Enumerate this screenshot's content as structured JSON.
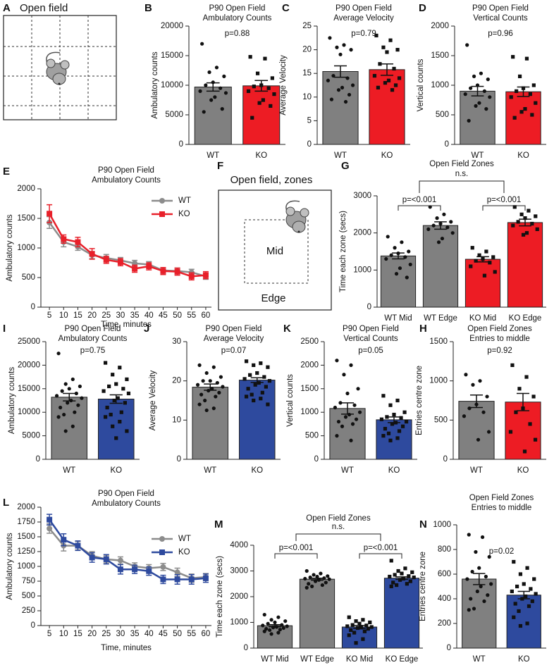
{
  "diagrams": [
    {
      "panel": "A",
      "title": "Open field"
    },
    {
      "panel": "F",
      "title": "Open field, zones",
      "labels": [
        "Mid",
        "Edge"
      ]
    }
  ],
  "chart_data": [
    {
      "panel": "B",
      "type": "bar",
      "title": [
        "P90 Open Field",
        "Ambulatory Counts"
      ],
      "ylabel": "Ambulatory counts",
      "categories": [
        "WT",
        "KO"
      ],
      "colors": [
        "#808080",
        "#ed1c24"
      ],
      "markers": [
        "circle",
        "square"
      ],
      "values": [
        9700,
        9900
      ],
      "errors": [
        700,
        900
      ],
      "points": [
        [
          17000,
          13000,
          12200,
          11500,
          10500,
          10000,
          9500,
          9000,
          8700,
          8000,
          7500,
          6000,
          5500
        ],
        [
          14800,
          14500,
          12000,
          11200,
          10000,
          9800,
          9500,
          9000,
          8500,
          7500,
          7000,
          6500,
          4500
        ]
      ],
      "ylim": [
        0,
        20000
      ],
      "yticks": [
        0,
        5000,
        10000,
        15000,
        20000
      ],
      "annotations": [
        "p=0.88"
      ]
    },
    {
      "panel": "C",
      "type": "bar",
      "title": [
        "P90 Open Field",
        "Average Velocity"
      ],
      "ylabel": "Average Velocity",
      "categories": [
        "WT",
        "KO"
      ],
      "colors": [
        "#808080",
        "#ed1c24"
      ],
      "markers": [
        "circle",
        "square"
      ],
      "values": [
        15.4,
        15.8
      ],
      "errors": [
        1.2,
        1.2
      ],
      "points": [
        [
          22.5,
          21,
          20.5,
          20,
          19,
          14.5,
          14,
          13.5,
          12.5,
          12,
          11.5,
          10.5,
          9.5,
          9
        ],
        [
          23,
          22,
          20.5,
          20,
          19.5,
          17,
          16,
          14.5,
          14,
          13.5,
          13,
          12.5,
          12,
          11.5
        ]
      ],
      "ylim": [
        0,
        25
      ],
      "yticks": [
        0,
        5,
        10,
        15,
        20,
        25
      ],
      "annotations": [
        "p=0.79"
      ]
    },
    {
      "panel": "D",
      "type": "bar",
      "title": [
        "P90 Open Field",
        "Vertical Counts"
      ],
      "ylabel": "Vertical counts",
      "categories": [
        "WT",
        "KO"
      ],
      "colors": [
        "#808080",
        "#ed1c24"
      ],
      "markers": [
        "circle",
        "square"
      ],
      "values": [
        900,
        890
      ],
      "errors": [
        80,
        80
      ],
      "points": [
        [
          1680,
          1200,
          1150,
          1100,
          1000,
          950,
          900,
          850,
          800,
          700,
          650,
          600,
          400
        ],
        [
          1480,
          1450,
          1150,
          1000,
          950,
          900,
          850,
          800,
          700,
          600,
          550,
          500,
          450
        ]
      ],
      "ylim": [
        0,
        2000
      ],
      "yticks": [
        0,
        500,
        1000,
        1500,
        2000
      ],
      "annotations": [
        "p=0.96"
      ]
    },
    {
      "panel": "E",
      "type": "line",
      "title": [
        "P90 Open Field",
        "Ambulatory Counts"
      ],
      "xlabel": "Time, minutes",
      "ylabel": "Ambulatory counts",
      "x": [
        5,
        10,
        15,
        20,
        25,
        30,
        35,
        40,
        45,
        50,
        55,
        60
      ],
      "xlim": [
        2,
        62
      ],
      "xticks": [
        5,
        10,
        15,
        20,
        25,
        30,
        35,
        40,
        45,
        50,
        55,
        60
      ],
      "ylim": [
        0,
        2000
      ],
      "yticks": [
        0,
        500,
        1000,
        1500,
        2000
      ],
      "legend": "upper right",
      "series": [
        {
          "name": "WT",
          "color": "#8c8c8c",
          "marker": "circle",
          "values": [
            1430,
            1100,
            1020,
            880,
            830,
            790,
            740,
            720,
            620,
            610,
            590,
            520
          ],
          "errors": [
            100,
            80,
            60,
            60,
            60,
            50,
            50,
            50,
            50,
            50,
            50,
            50
          ]
        },
        {
          "name": "KO",
          "color": "#e8202a",
          "marker": "square",
          "values": [
            1580,
            1150,
            1100,
            900,
            800,
            760,
            650,
            690,
            610,
            600,
            520,
            540
          ],
          "errors": [
            150,
            70,
            80,
            90,
            60,
            60,
            60,
            60,
            60,
            60,
            60,
            60
          ]
        }
      ]
    },
    {
      "panel": "G",
      "type": "bar",
      "title": [
        "Open Field Zones"
      ],
      "ylabel": "Time each zone (secs)",
      "categories": [
        "WT Mid",
        "WT Edge",
        "KO Mid",
        "KO Edge"
      ],
      "colors": [
        "#808080",
        "#808080",
        "#ed1c24",
        "#ed1c24"
      ],
      "markers": [
        "circle",
        "circle",
        "square",
        "square"
      ],
      "values": [
        1380,
        2200,
        1290,
        2280
      ],
      "errors": [
        80,
        100,
        70,
        90
      ],
      "points": [
        [
          1900,
          1750,
          1600,
          1500,
          1450,
          1400,
          1350,
          1300,
          1150,
          1050,
          900,
          800
        ],
        [
          2700,
          2500,
          2400,
          2300,
          2250,
          2200,
          2150,
          2100,
          2000,
          1850,
          1750
        ],
        [
          1600,
          1500,
          1400,
          1350,
          1300,
          1250,
          1200,
          1100,
          950,
          850
        ],
        [
          2700,
          2600,
          2500,
          2450,
          2400,
          2300,
          2250,
          2200,
          2100,
          2000,
          1950
        ]
      ],
      "ylim": [
        0,
        3000
      ],
      "yticks": [
        0,
        1000,
        2000,
        3000
      ],
      "annotations": [
        "p=<0.001",
        "p=<0.001",
        "n.s."
      ]
    },
    {
      "panel": "I",
      "type": "bar",
      "title": [
        "P90 Open Field",
        "Ambulatory Counts"
      ],
      "ylabel": "Ambulatory counts",
      "categories": [
        "WT",
        "KO"
      ],
      "colors": [
        "#808080",
        "#2e4a9e"
      ],
      "markers": [
        "circle",
        "square"
      ],
      "values": [
        13200,
        12800
      ],
      "errors": [
        800,
        900
      ],
      "points": [
        [
          22500,
          17000,
          16000,
          15500,
          15000,
          14500,
          14000,
          13500,
          13000,
          12500,
          12000,
          11500,
          11000,
          10000,
          9500,
          9000,
          7000,
          6000
        ],
        [
          20500,
          19500,
          18000,
          17000,
          16000,
          15500,
          15000,
          14500,
          14000,
          13000,
          12500,
          12000,
          11000,
          10000,
          9500,
          9000,
          8000,
          7000,
          6000,
          4500
        ]
      ],
      "ylim": [
        0,
        25000
      ],
      "yticks": [
        0,
        5000,
        10000,
        15000,
        20000,
        25000
      ],
      "annotations": [
        "p=0.75"
      ]
    },
    {
      "panel": "J",
      "type": "bar",
      "title": [
        "P90 Open Field",
        "Average Velocity"
      ],
      "ylabel": "Average Velocity",
      "categories": [
        "WT",
        "KO"
      ],
      "colors": [
        "#808080",
        "#2e4a9e"
      ],
      "markers": [
        "circle",
        "square"
      ],
      "values": [
        18.4,
        20.2
      ],
      "errors": [
        0.8,
        0.6
      ],
      "points": [
        [
          24,
          23.5,
          22,
          21,
          20,
          20,
          19.5,
          19,
          18.5,
          18,
          17.5,
          17,
          16.5,
          16,
          15,
          14,
          13,
          12.5
        ],
        [
          25,
          24.5,
          24,
          23.5,
          22,
          21.5,
          21,
          20.5,
          20,
          19.5,
          19,
          18.5,
          18,
          17,
          16.5,
          16,
          15.5,
          15,
          14
        ]
      ],
      "ylim": [
        0,
        30
      ],
      "yticks": [
        0,
        10,
        20,
        30
      ],
      "annotations": [
        "p=0.07"
      ]
    },
    {
      "panel": "K",
      "type": "bar",
      "title": [
        "P90 Open Field",
        "Vertical Counts"
      ],
      "ylabel": "Vertical counts",
      "categories": [
        "WT",
        "KO"
      ],
      "colors": [
        "#808080",
        "#2e4a9e"
      ],
      "markers": [
        "circle",
        "square"
      ],
      "values": [
        1080,
        840
      ],
      "errors": [
        120,
        60
      ],
      "points": [
        [
          2100,
          2000,
          1800,
          1500,
          1400,
          1200,
          1150,
          1100,
          1000,
          950,
          900,
          850,
          800,
          750,
          700,
          500,
          400
        ],
        [
          1350,
          1250,
          1150,
          1000,
          950,
          900,
          880,
          850,
          800,
          780,
          750,
          700,
          650,
          600,
          550,
          500,
          450,
          400
        ]
      ],
      "ylim": [
        0,
        2500
      ],
      "yticks": [
        0,
        500,
        1000,
        1500,
        2000,
        2500
      ],
      "annotations": [
        "p=0.05"
      ]
    },
    {
      "panel": "H",
      "type": "bar",
      "title": [
        "Open Field Zones",
        "Entries to middle"
      ],
      "ylabel": "Entries centre zone",
      "categories": [
        "WT",
        "KO"
      ],
      "colors": [
        "#808080",
        "#ed1c24"
      ],
      "markers": [
        "circle",
        "square"
      ],
      "values": [
        740,
        730
      ],
      "errors": [
        80,
        110
      ],
      "points": [
        [
          1080,
          1000,
          950,
          800,
          700,
          650,
          600,
          550,
          350,
          250
        ],
        [
          1200,
          1050,
          900,
          800,
          650,
          600,
          450,
          350,
          250,
          100
        ]
      ],
      "ylim": [
        0,
        1500
      ],
      "yticks": [
        0,
        500,
        1000,
        1500
      ],
      "annotations": [
        "p=0.92"
      ]
    },
    {
      "panel": "L",
      "type": "line",
      "title": [
        "P90 Open Field",
        "Ambulatory Counts"
      ],
      "xlabel": "Time, minutes",
      "ylabel": "Ambulatory counts",
      "x": [
        5,
        10,
        15,
        20,
        25,
        30,
        35,
        40,
        45,
        50,
        55,
        60
      ],
      "xlim": [
        2,
        62
      ],
      "xticks": [
        5,
        10,
        15,
        20,
        25,
        30,
        35,
        40,
        45,
        50,
        55,
        60
      ],
      "ylim": [
        0,
        2000
      ],
      "yticks": [
        0,
        250,
        500,
        750,
        1000,
        1250,
        1500,
        1750,
        2000
      ],
      "legend": "upper right",
      "series": [
        {
          "name": "WT",
          "color": "#8c8c8c",
          "marker": "circle",
          "values": [
            1640,
            1350,
            1350,
            1180,
            1120,
            1100,
            1000,
            970,
            990,
            900,
            800,
            820
          ],
          "errors": [
            80,
            90,
            70,
            70,
            60,
            60,
            60,
            60,
            60,
            70,
            70,
            60
          ]
        },
        {
          "name": "KO",
          "color": "#2e4a9e",
          "marker": "square",
          "values": [
            1790,
            1450,
            1350,
            1150,
            1120,
            950,
            950,
            920,
            780,
            780,
            780,
            800
          ],
          "errors": [
            90,
            100,
            80,
            80,
            80,
            80,
            70,
            70,
            70,
            80,
            80,
            70
          ]
        }
      ]
    },
    {
      "panel": "M",
      "type": "bar",
      "title": [
        "Open Field Zones"
      ],
      "ylabel": "Time each zone (secs)",
      "categories": [
        "WT Mid",
        "WT Edge",
        "KO Mid",
        "KO Edge"
      ],
      "colors": [
        "#808080",
        "#808080",
        "#2e4a9e",
        "#2e4a9e"
      ],
      "markers": [
        "circle",
        "circle",
        "square",
        "square"
      ],
      "values": [
        870,
        2680,
        820,
        2720
      ],
      "errors": [
        40,
        40,
        60,
        50
      ],
      "points": [
        [
          1300,
          1200,
          1100,
          1050,
          1000,
          950,
          900,
          880,
          850,
          820,
          800,
          780,
          750,
          720,
          700,
          650,
          600,
          550
        ],
        [
          3000,
          2900,
          2850,
          2800,
          2780,
          2750,
          2720,
          2700,
          2680,
          2650,
          2600,
          2550,
          2500,
          2450,
          2400,
          2350
        ],
        [
          1200,
          1100,
          1050,
          1000,
          950,
          900,
          880,
          850,
          820,
          800,
          780,
          750,
          700,
          650,
          600,
          500,
          350,
          200
        ],
        [
          3400,
          3100,
          3000,
          2950,
          2900,
          2850,
          2800,
          2780,
          2750,
          2700,
          2650,
          2600,
          2550,
          2500,
          2450,
          2400
        ]
      ],
      "ylim": [
        0,
        4000
      ],
      "yticks": [
        0,
        1000,
        2000,
        3000,
        4000
      ],
      "annotations": [
        "p=<0.001",
        "p=<0.001",
        "n.s."
      ]
    },
    {
      "panel": "N",
      "type": "bar",
      "title": [
        "Open Field Zones",
        "Entries to middle"
      ],
      "ylabel": "Entries centre zone",
      "categories": [
        "WT",
        "KO"
      ],
      "colors": [
        "#808080",
        "#2e4a9e"
      ],
      "markers": [
        "circle",
        "square"
      ],
      "values": [
        560,
        430
      ],
      "errors": [
        45,
        30
      ],
      "points": [
        [
          920,
          900,
          780,
          740,
          650,
          620,
          580,
          560,
          520,
          500,
          460,
          430,
          400,
          380,
          320,
          310
        ],
        [
          700,
          650,
          600,
          560,
          520,
          500,
          480,
          460,
          440,
          420,
          400,
          380,
          360,
          340,
          300,
          250,
          200,
          180
        ]
      ],
      "ylim": [
        0,
        1000
      ],
      "yticks": [
        0,
        200,
        400,
        600,
        800,
        1000
      ],
      "annotations": [
        "p=0.02"
      ]
    }
  ]
}
